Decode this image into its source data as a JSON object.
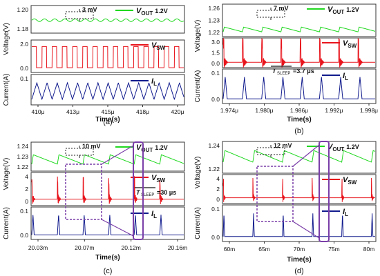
{
  "figure": {
    "panels": [
      {
        "panel_label": "(a)",
        "xlabel": "Time(s)",
        "x_ticks": [
          "410μ",
          "413μ",
          "415μ",
          "418μ",
          "420μ"
        ],
        "ylabel_top": "Voltage(V)",
        "ylabel_bottom": "Current(A)",
        "vout_ticks": [
          "1.20",
          "1.18"
        ],
        "vsw_ticks": [
          "2.0",
          "0.0"
        ],
        "il_ticks": [
          "0.1"
        ],
        "annotations": [
          "3 mV"
        ],
        "legend": {
          "vout": "V",
          "vout_sub": "OUT",
          "vout_val": "1.2V",
          "vsw": "V",
          "vsw_sub": "SW",
          "il": "I",
          "il_sub": "L"
        }
      },
      {
        "panel_label": "(b)",
        "xlabel": "Time(s)",
        "x_ticks": [
          "1.974μ",
          "1.980μ",
          "1.986μ",
          "1.992μ",
          "1.998μ"
        ],
        "ylabel_top": "Voltage(V)",
        "ylabel_bottom": "Current(A)",
        "vout_ticks": [
          "1.26",
          "1.23",
          "1.22"
        ],
        "vsw_ticks": [
          "3.0",
          "1.5",
          "0.0"
        ],
        "il_ticks": [
          "0.1",
          "0.0"
        ],
        "annotations": [
          "7 mV",
          "T",
          "SLEEP",
          "=3.7 μs"
        ],
        "legend": {
          "vout": "V",
          "vout_sub": "OUT",
          "vout_val": "1.2V",
          "vsw": "V",
          "vsw_sub": "SW",
          "il": "I",
          "il_sub": "L"
        }
      },
      {
        "panel_label": "(c)",
        "xlabel": "Time(s)",
        "x_ticks": [
          "20.03m",
          "20.07m",
          "20.12m",
          "20.16m"
        ],
        "ylabel_top": "Voltage(V)",
        "ylabel_bottom": "Current(A)",
        "vout_ticks": [
          "1.24",
          "1.23",
          "1.22"
        ],
        "vsw_ticks": [
          "4",
          "2",
          "0"
        ],
        "il_ticks": [
          "0.1",
          "0.0"
        ],
        "annotations": [
          "10 mV",
          "T",
          "SLEEP",
          "=30 μs"
        ],
        "legend": {
          "vout": "V",
          "vout_sub": "OUT",
          "vout_val": "1.2V",
          "vsw": "V",
          "vsw_sub": "SW",
          "il": "I",
          "il_sub": "L"
        }
      },
      {
        "panel_label": "(d)",
        "xlabel": "Time(s)",
        "x_ticks": [
          "60m",
          "65m",
          "70m",
          "75m",
          "80m"
        ],
        "ylabel_top": "Voltage(V)",
        "ylabel_bottom": "Current(A)",
        "vout_ticks": [
          "1.24",
          "1.22"
        ],
        "vsw_ticks": [
          "4",
          "2",
          "0"
        ],
        "il_ticks": [
          "0.1",
          "0.0"
        ],
        "annotations": [
          "12 mV"
        ],
        "legend": {
          "vout": "V",
          "vout_sub": "OUT",
          "vout_val": "1.2V",
          "vsw": "V",
          "vsw_sub": "SW",
          "il": "I",
          "il_sub": "L"
        }
      }
    ],
    "colors": {
      "vout": "#1fd81f",
      "vsw": "#e8141c",
      "il": "#101a8c",
      "highlight": "#7a3ea8",
      "frame": "#333333"
    }
  },
  "chart_data": [
    {
      "type": "line",
      "title": "(a)",
      "xlabel": "Time(s)",
      "x_range": [
        410,
        420
      ],
      "series": [
        {
          "name": "VOUT 1.2V",
          "kind": "ripple",
          "mean": 1.19,
          "ripple": 0.003,
          "period": 0.67,
          "ylim": [
            1.177,
            1.205
          ]
        },
        {
          "name": "VSW",
          "kind": "square",
          "high": 2.5,
          "low": 0,
          "period": 0.67,
          "duty": 0.45,
          "ylim": [
            -0.4,
            3.1
          ]
        },
        {
          "name": "IL",
          "kind": "triangle",
          "min": 0.03,
          "max": 0.15,
          "period": 0.67,
          "ylim": [
            0,
            0.2
          ]
        }
      ]
    },
    {
      "type": "line",
      "title": "(b)",
      "xlabel": "Time(s)",
      "x_range": [
        1.97,
        2.0
      ],
      "series": [
        {
          "name": "VOUT 1.2V",
          "kind": "sawtooth",
          "low": 1.223,
          "high": 1.23,
          "period": 0.0038,
          "ylim": [
            1.218,
            1.262
          ]
        },
        {
          "name": "VSW",
          "kind": "burst",
          "high": 3.0,
          "low": 0,
          "period": 0.0038,
          "width": 0.0009,
          "ylim": [
            -0.5,
            3.6
          ]
        },
        {
          "name": "IL",
          "kind": "pulse",
          "peak": 0.13,
          "period": 0.0038,
          "width": 0.0008,
          "ylim": [
            -0.02,
            0.17
          ]
        }
      ],
      "sleep_time_us": 3.7
    },
    {
      "type": "line",
      "title": "(c)",
      "xlabel": "Time(s)",
      "x_range": [
        20.0,
        20.19
      ],
      "series": [
        {
          "name": "VOUT 1.2V",
          "kind": "sawtooth",
          "low": 1.224,
          "high": 1.234,
          "period": 0.032,
          "ylim": [
            1.218,
            1.246
          ]
        },
        {
          "name": "VSW",
          "kind": "burst",
          "high": 4.0,
          "low": 0,
          "period": 0.032,
          "width": 0.004,
          "ylim": [
            -1,
            5.5
          ]
        },
        {
          "name": "IL",
          "kind": "pulse",
          "peak": 0.13,
          "period": 0.032,
          "width": 0.003,
          "ylim": [
            -0.02,
            0.17
          ]
        }
      ],
      "sleep_time_us": 30
    },
    {
      "type": "line",
      "title": "(d)",
      "xlabel": "Time(s)",
      "x_range": [
        60,
        80
      ],
      "series": [
        {
          "name": "VOUT 1.2V",
          "kind": "sawtooth",
          "low": 1.228,
          "high": 1.24,
          "period": 3.9,
          "ylim": [
            1.218,
            1.248
          ]
        },
        {
          "name": "VSW",
          "kind": "burst",
          "high": 4.0,
          "low": 0,
          "period": 3.9,
          "width": 0.3,
          "ylim": [
            -1,
            5.5
          ]
        },
        {
          "name": "IL",
          "kind": "pulse",
          "peak": 0.13,
          "period": 3.9,
          "width": 0.2,
          "ylim": [
            -0.02,
            0.17
          ]
        }
      ]
    }
  ]
}
